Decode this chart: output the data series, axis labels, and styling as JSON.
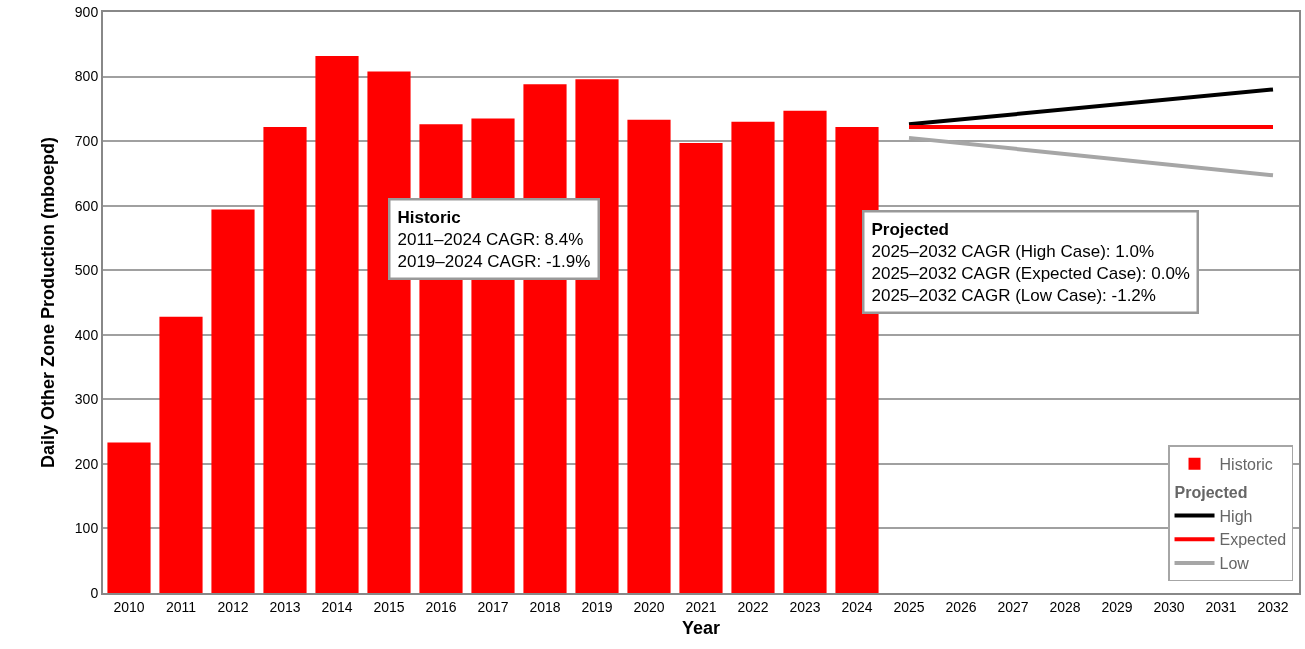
{
  "chart_data": {
    "type": "bar",
    "xlabel": "Year",
    "ylabel": "Daily Other Zone Production (mboepd)",
    "categories": [
      "2010",
      "2011",
      "2012",
      "2013",
      "2014",
      "2015",
      "2016",
      "2017",
      "2018",
      "2019",
      "2020",
      "2021",
      "2022",
      "2023",
      "2024",
      "2025",
      "2026",
      "2027",
      "2028",
      "2029",
      "2030",
      "2031",
      "2032"
    ],
    "ylim": [
      0,
      900
    ],
    "yticks": [
      0,
      100,
      200,
      300,
      400,
      500,
      600,
      700,
      800,
      900
    ],
    "grid": "y",
    "legend": "bottom right",
    "legend_title": "Projected",
    "marker": "none",
    "line_style": "solid",
    "series": [
      {
        "name": "Historic",
        "color": "#ff0000",
        "values": [
          233,
          428,
          594,
          722,
          832,
          808,
          726,
          735,
          788,
          796,
          733,
          697,
          730,
          747,
          722,
          null,
          null,
          null,
          null,
          null,
          null,
          null,
          null
        ]
      },
      {
        "name": "High",
        "type": "line",
        "color": "#000000",
        "values": [
          null,
          null,
          null,
          null,
          null,
          null,
          null,
          null,
          null,
          null,
          null,
          null,
          null,
          null,
          null,
          726,
          null,
          null,
          null,
          null,
          null,
          null,
          780
        ]
      },
      {
        "name": "Expected",
        "type": "line",
        "color": "#ff0000",
        "values": [
          null,
          null,
          null,
          null,
          null,
          null,
          null,
          null,
          null,
          null,
          null,
          null,
          null,
          null,
          null,
          722,
          null,
          null,
          null,
          null,
          null,
          null,
          722
        ]
      },
      {
        "name": "Low",
        "type": "line",
        "color": "#a6a6a6",
        "values": [
          null,
          null,
          null,
          null,
          null,
          null,
          null,
          null,
          null,
          null,
          null,
          null,
          null,
          null,
          null,
          705,
          null,
          null,
          null,
          null,
          null,
          null,
          647
        ]
      }
    ],
    "annotations": [
      "Historic\n2011–2024 CAGR: 8.4%\n2019–2024 CAGR: -1.9%",
      "Projected\n2025–2032 CAGR (High Case): 1.0%\n2025–2032 CAGR (Expected Case): 0.0%\n2025–2032 CAGR (Low Case): -1.2%"
    ]
  }
}
